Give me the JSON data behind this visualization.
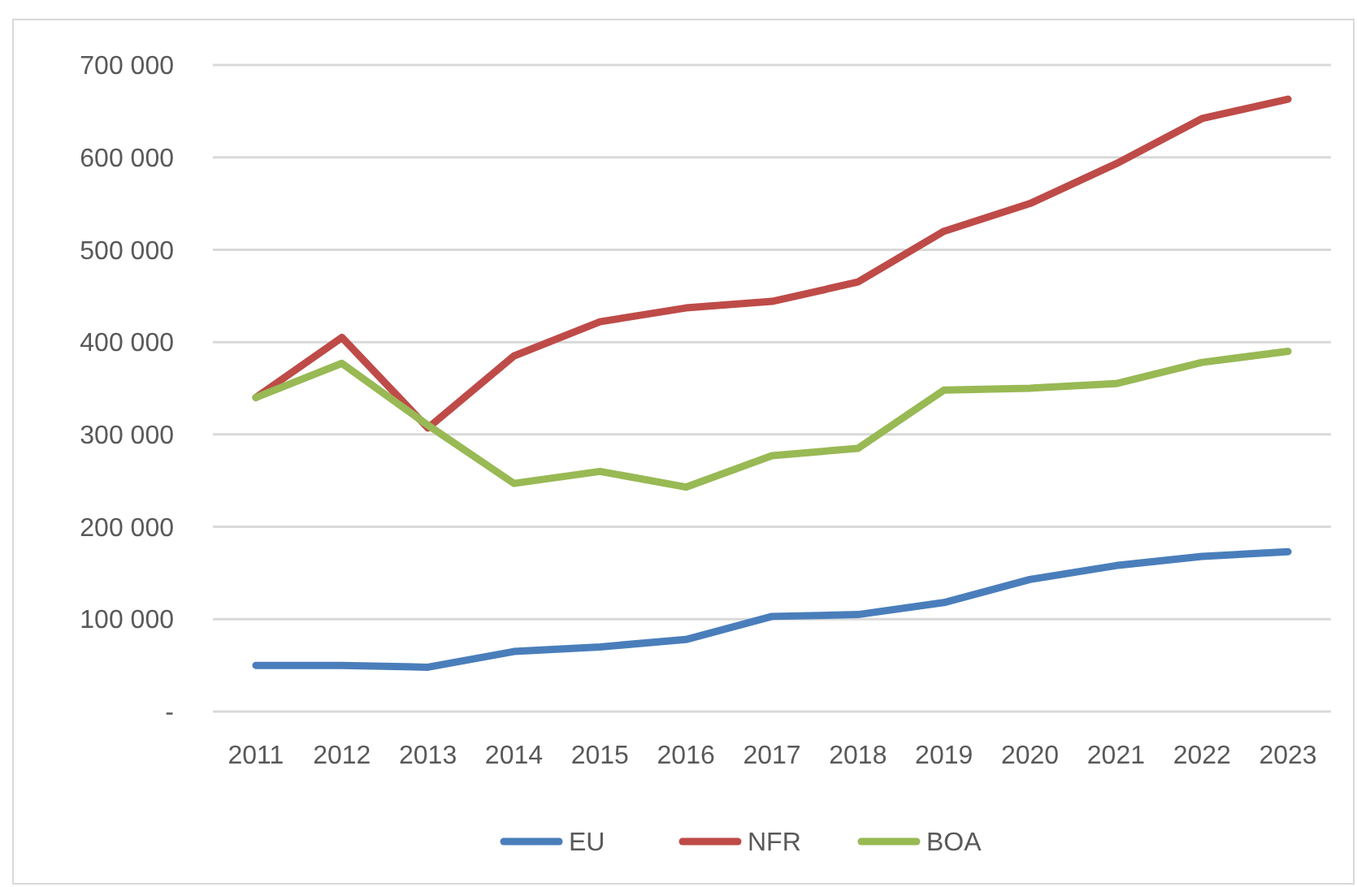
{
  "chart_data": {
    "type": "line",
    "categories": [
      "2011",
      "2012",
      "2013",
      "2014",
      "2015",
      "2016",
      "2017",
      "2018",
      "2019",
      "2020",
      "2021",
      "2022",
      "2023"
    ],
    "series": [
      {
        "name": "EU",
        "color": "#4a7ebb",
        "values": [
          50000,
          50000,
          48000,
          65000,
          70000,
          78000,
          103000,
          105000,
          118000,
          143000,
          158000,
          168000,
          173000
        ]
      },
      {
        "name": "NFR",
        "color": "#be4b48",
        "values": [
          340000,
          405000,
          307000,
          385000,
          422000,
          437000,
          444000,
          465000,
          520000,
          550000,
          593000,
          642000,
          663000
        ]
      },
      {
        "name": "BOA",
        "color": "#98b954",
        "values": [
          340000,
          377000,
          310000,
          247000,
          260000,
          243000,
          277000,
          285000,
          348000,
          350000,
          355000,
          378000,
          390000
        ]
      }
    ],
    "ylim": [
      0,
      700000
    ],
    "yticks": [
      {
        "value": 0,
        "label": "-"
      },
      {
        "value": 100000,
        "label": "100 000"
      },
      {
        "value": 200000,
        "label": "200 000"
      },
      {
        "value": 300000,
        "label": "300 000"
      },
      {
        "value": 400000,
        "label": "400 000"
      },
      {
        "value": 500000,
        "label": "500 000"
      },
      {
        "value": 600000,
        "label": "600 000"
      },
      {
        "value": 700000,
        "label": "700 000"
      }
    ],
    "grid": "y",
    "legend": "bottom",
    "marker": "none",
    "line_style": "solid"
  }
}
